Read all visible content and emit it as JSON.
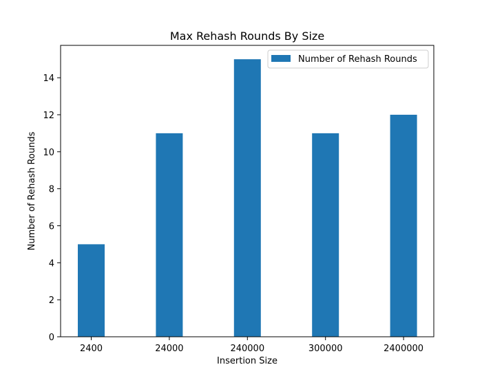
{
  "chart_data": {
    "type": "bar",
    "title": "Max Rehash Rounds By Size",
    "xlabel": "Insertion Size",
    "ylabel": "Number of Rehash Rounds",
    "categories": [
      "2400",
      "24000",
      "240000",
      "300000",
      "2400000"
    ],
    "series": [
      {
        "name": "Number of Rehash Rounds",
        "values": [
          5,
          11,
          15,
          11,
          12
        ],
        "color": "#1f77b4"
      }
    ],
    "ylim": [
      0,
      15.75
    ],
    "yticks": [
      0,
      2,
      4,
      6,
      8,
      10,
      12,
      14
    ],
    "grid": false,
    "legend_position": "top-right"
  }
}
